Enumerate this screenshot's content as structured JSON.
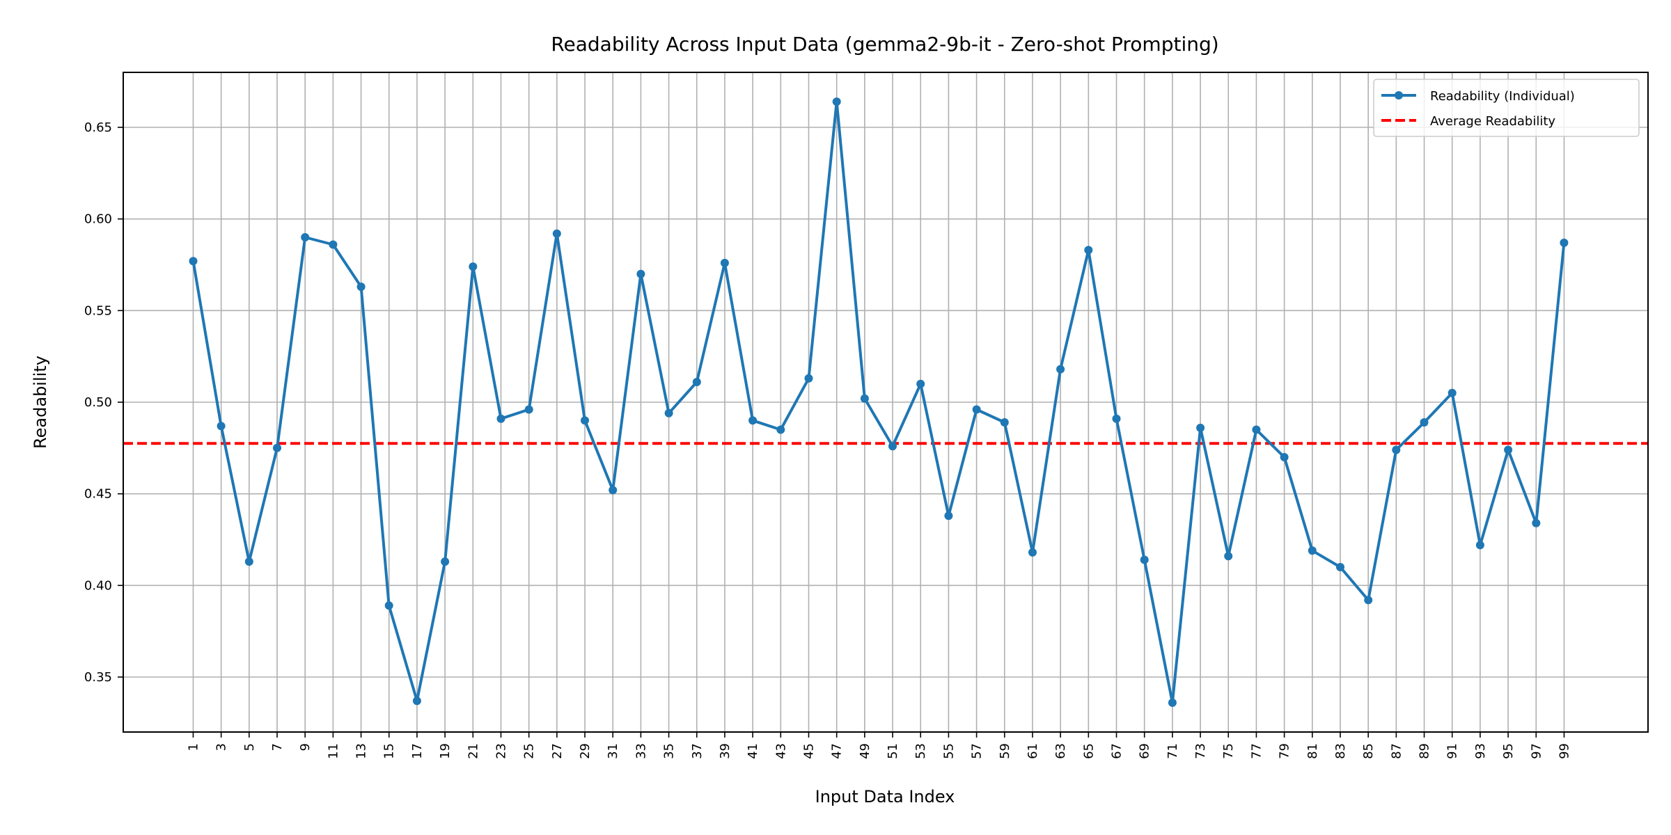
{
  "chart_data": {
    "type": "line",
    "title": "Readability Across Input Data (gemma2-9b-it - Zero-shot Prompting)",
    "xlabel": "Input Data Index",
    "ylabel": "Readability",
    "ylim": [
      0.32,
      0.68
    ],
    "xlim": [
      -4,
      105
    ],
    "grid": true,
    "legend_position": "top-right",
    "yticks": [
      0.35,
      0.4,
      0.45,
      0.5,
      0.55,
      0.6,
      0.65
    ],
    "ytick_labels": [
      "0.35",
      "0.40",
      "0.45",
      "0.50",
      "0.55",
      "0.60",
      "0.65"
    ],
    "x": [
      1,
      3,
      5,
      7,
      9,
      11,
      13,
      15,
      17,
      19,
      21,
      23,
      25,
      27,
      29,
      31,
      33,
      35,
      37,
      39,
      41,
      43,
      45,
      47,
      49,
      51,
      53,
      55,
      57,
      59,
      61,
      63,
      65,
      67,
      69,
      71,
      73,
      75,
      77,
      79,
      81,
      83,
      85,
      87,
      89,
      91,
      93,
      95,
      97,
      99
    ],
    "xtick_labels": [
      "1",
      "3",
      "5",
      "7",
      "9",
      "11",
      "13",
      "15",
      "17",
      "19",
      "21",
      "23",
      "25",
      "27",
      "29",
      "31",
      "33",
      "35",
      "37",
      "39",
      "41",
      "43",
      "45",
      "47",
      "49",
      "51",
      "53",
      "55",
      "57",
      "59",
      "61",
      "63",
      "65",
      "67",
      "69",
      "71",
      "73",
      "75",
      "77",
      "79",
      "81",
      "83",
      "85",
      "87",
      "89",
      "91",
      "93",
      "95",
      "97",
      "99"
    ],
    "series": [
      {
        "name": "Readability (Individual)",
        "color": "#1f77b4",
        "style": "solid-with-markers",
        "values": [
          0.577,
          0.487,
          0.413,
          0.475,
          0.59,
          0.586,
          0.563,
          0.389,
          0.337,
          0.413,
          0.574,
          0.491,
          0.496,
          0.592,
          0.49,
          0.452,
          0.57,
          0.494,
          0.511,
          0.576,
          0.49,
          0.485,
          0.513,
          0.664,
          0.502,
          0.476,
          0.51,
          0.438,
          0.496,
          0.489,
          0.418,
          0.518,
          0.583,
          0.491,
          0.414,
          0.336,
          0.486,
          0.416,
          0.485,
          0.47,
          0.419,
          0.41,
          0.392,
          0.474,
          0.489,
          0.505,
          0.422,
          0.474,
          0.434,
          0.587
        ]
      },
      {
        "name": "Average Readability",
        "color": "#ff0000",
        "style": "dashed",
        "value": 0.4775
      }
    ]
  }
}
